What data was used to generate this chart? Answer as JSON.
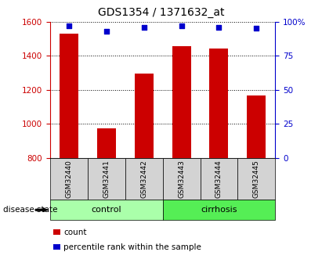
{
  "title": "GDS1354 / 1371632_at",
  "samples": [
    "GSM32440",
    "GSM32441",
    "GSM32442",
    "GSM32443",
    "GSM32444",
    "GSM32445"
  ],
  "counts": [
    1530,
    975,
    1295,
    1455,
    1440,
    1165
  ],
  "percentiles": [
    97,
    93,
    96,
    97,
    96,
    95
  ],
  "groups": [
    "control",
    "control",
    "control",
    "cirrhosis",
    "cirrhosis",
    "cirrhosis"
  ],
  "ylim_left": [
    800,
    1600
  ],
  "ylim_right": [
    0,
    100
  ],
  "yticks_left": [
    800,
    1000,
    1200,
    1400,
    1600
  ],
  "yticks_right": [
    0,
    25,
    50,
    75,
    100
  ],
  "bar_color": "#cc0000",
  "scatter_color": "#0000cc",
  "control_color": "#aaffaa",
  "cirrhosis_color": "#55ee55",
  "left_axis_color": "#cc0000",
  "right_axis_color": "#0000cc",
  "background_color": "#ffffff",
  "legend_count_label": "count",
  "legend_percentile_label": "percentile rank within the sample",
  "disease_state_label": "disease state",
  "bar_bottom": 800,
  "bar_width": 0.5
}
